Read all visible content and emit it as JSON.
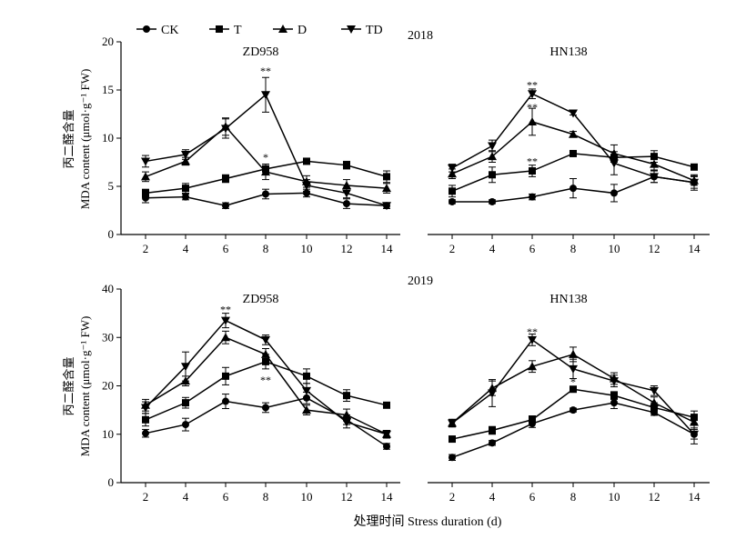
{
  "legend": [
    {
      "label": "CK",
      "marker": "circle"
    },
    {
      "label": "T",
      "marker": "square"
    },
    {
      "label": "D",
      "marker": "triangle-up"
    },
    {
      "label": "TD",
      "marker": "triangle-down"
    }
  ],
  "years": [
    "2018",
    "2019"
  ],
  "ylabel_cn": "丙二醛含量",
  "ylabel_en": "MDA content (μmol·g⁻¹ FW)",
  "xlabel": "处理时间 Stress duration (d)",
  "chart_data": [
    {
      "type": "line",
      "year": "2018",
      "title": "ZD958",
      "x": [
        2,
        4,
        6,
        8,
        10,
        12,
        14
      ],
      "ylim": [
        0,
        20
      ],
      "yticks": [
        0,
        5,
        10,
        15,
        20
      ],
      "series": [
        {
          "name": "CK",
          "marker": "circle",
          "values": [
            3.8,
            3.9,
            3.0,
            4.2,
            4.3,
            3.2,
            3.0
          ],
          "err": [
            0.5,
            0.3,
            0.3,
            0.5,
            0.4,
            0.5,
            0.3
          ]
        },
        {
          "name": "T",
          "marker": "square",
          "values": [
            4.3,
            4.8,
            5.8,
            6.8,
            7.6,
            7.2,
            6.0
          ],
          "err": [
            0.4,
            0.5,
            0.4,
            0.5,
            0.3,
            0.4,
            0.6
          ]
        },
        {
          "name": "D",
          "marker": "triangle-up",
          "values": [
            6.0,
            7.6,
            11.2,
            6.5,
            5.5,
            5.1,
            4.8
          ],
          "err": [
            0.5,
            0.4,
            0.9,
            0.8,
            0.6,
            0.6,
            0.5
          ]
        },
        {
          "name": "TD",
          "marker": "triangle-down",
          "values": [
            7.6,
            8.3,
            11.0,
            14.5,
            5.1,
            4.3,
            3.0
          ],
          "err": [
            0.6,
            0.5,
            1.0,
            1.8,
            0.6,
            0.5,
            0.3
          ]
        }
      ],
      "annotations": [
        {
          "x": 8,
          "y": 17.0,
          "text": "**"
        },
        {
          "x": 8,
          "y": 8.0,
          "text": "*"
        }
      ]
    },
    {
      "type": "line",
      "year": "2018",
      "title": "HN138",
      "x": [
        2,
        4,
        6,
        8,
        10,
        12,
        14
      ],
      "ylim": [
        0,
        20
      ],
      "yticks": [
        0,
        5,
        10,
        15,
        20
      ],
      "series": [
        {
          "name": "CK",
          "marker": "circle",
          "values": [
            3.4,
            3.4,
            3.9,
            4.8,
            4.3,
            6.0,
            5.4
          ],
          "err": [
            0.2,
            0.2,
            0.3,
            1.0,
            0.9,
            0.6,
            0.6
          ]
        },
        {
          "name": "T",
          "marker": "square",
          "values": [
            4.5,
            6.2,
            6.6,
            8.4,
            8.0,
            8.1,
            7.0
          ],
          "err": [
            0.6,
            0.8,
            0.6,
            0.2,
            0.3,
            0.6,
            0.2
          ]
        },
        {
          "name": "D",
          "marker": "triangle-up",
          "values": [
            6.3,
            8.1,
            11.7,
            10.4,
            8.4,
            7.3,
            5.6
          ],
          "err": [
            0.5,
            0.6,
            1.4,
            0.3,
            0.9,
            0.6,
            0.5
          ]
        },
        {
          "name": "TD",
          "marker": "triangle-down",
          "values": [
            6.9,
            9.2,
            14.6,
            12.6,
            7.4,
            6.0,
            5.4
          ],
          "err": [
            0.4,
            0.6,
            0.5,
            0.2,
            1.2,
            0.6,
            0.8
          ]
        }
      ],
      "annotations": [
        {
          "x": 6,
          "y": 15.5,
          "text": "**"
        },
        {
          "x": 6,
          "y": 13.2,
          "text": "**"
        },
        {
          "x": 6,
          "y": 7.6,
          "text": "**"
        }
      ]
    },
    {
      "type": "line",
      "year": "2019",
      "title": "ZD958",
      "x": [
        2,
        4,
        6,
        8,
        10,
        12,
        14
      ],
      "ylim": [
        0,
        40
      ],
      "yticks": [
        0,
        10,
        20,
        30,
        40
      ],
      "series": [
        {
          "name": "CK",
          "marker": "circle",
          "values": [
            10.2,
            12.0,
            16.8,
            15.5,
            17.5,
            13.0,
            7.5
          ],
          "err": [
            0.8,
            1.3,
            1.5,
            1.0,
            1.2,
            1.0,
            0.6
          ]
        },
        {
          "name": "T",
          "marker": "square",
          "values": [
            13.0,
            16.5,
            22.0,
            25.0,
            22.0,
            18.0,
            16.0
          ],
          "err": [
            1.3,
            1.1,
            1.8,
            1.5,
            1.5,
            1.2,
            0.5
          ]
        },
        {
          "name": "D",
          "marker": "triangle-up",
          "values": [
            16.0,
            21.0,
            30.0,
            26.5,
            15.0,
            14.0,
            10.0
          ],
          "err": [
            1.2,
            1.0,
            1.3,
            1.2,
            1.0,
            1.2,
            0.8
          ]
        },
        {
          "name": "TD",
          "marker": "triangle-down",
          "values": [
            15.5,
            24.0,
            33.5,
            29.5,
            19.0,
            12.5,
            10.0
          ],
          "err": [
            1.2,
            3.0,
            1.5,
            1.0,
            1.5,
            1.2,
            0.8
          ]
        }
      ],
      "annotations": [
        {
          "x": 6,
          "y": 35.8,
          "text": "**"
        },
        {
          "x": 8,
          "y": 21.2,
          "text": "**"
        }
      ]
    },
    {
      "type": "line",
      "year": "2019",
      "title": "HN138",
      "x": [
        2,
        4,
        6,
        8,
        10,
        12,
        14
      ],
      "ylim": [
        0,
        40
      ],
      "yticks": [
        0,
        10,
        20,
        30,
        40
      ],
      "series": [
        {
          "name": "CK",
          "marker": "circle",
          "values": [
            5.2,
            8.2,
            12.2,
            15.0,
            16.5,
            14.5,
            10.0
          ],
          "err": [
            0.6,
            0.5,
            0.8,
            0.4,
            1.2,
            0.6,
            1.0
          ]
        },
        {
          "name": "T",
          "marker": "square",
          "values": [
            9.0,
            10.8,
            13.0,
            19.3,
            18.0,
            15.5,
            13.5
          ],
          "err": [
            0.6,
            0.8,
            0.8,
            0.6,
            0.8,
            1.0,
            1.3
          ]
        },
        {
          "name": "D",
          "marker": "triangle-up",
          "values": [
            12.3,
            19.5,
            24.0,
            26.5,
            21.5,
            16.5,
            12.5
          ],
          "err": [
            0.7,
            1.5,
            1.2,
            1.5,
            1.2,
            1.2,
            1.2
          ]
        },
        {
          "name": "TD",
          "marker": "triangle-down",
          "values": [
            12.3,
            18.5,
            29.5,
            23.5,
            21.0,
            19.0,
            10.0
          ],
          "err": [
            0.8,
            2.8,
            1.2,
            2.0,
            1.2,
            1.0,
            2.0
          ]
        }
      ],
      "annotations": [
        {
          "x": 6,
          "y": 31.2,
          "text": "**"
        },
        {
          "x": 8,
          "y": 20.8,
          "text": "*"
        }
      ]
    }
  ]
}
